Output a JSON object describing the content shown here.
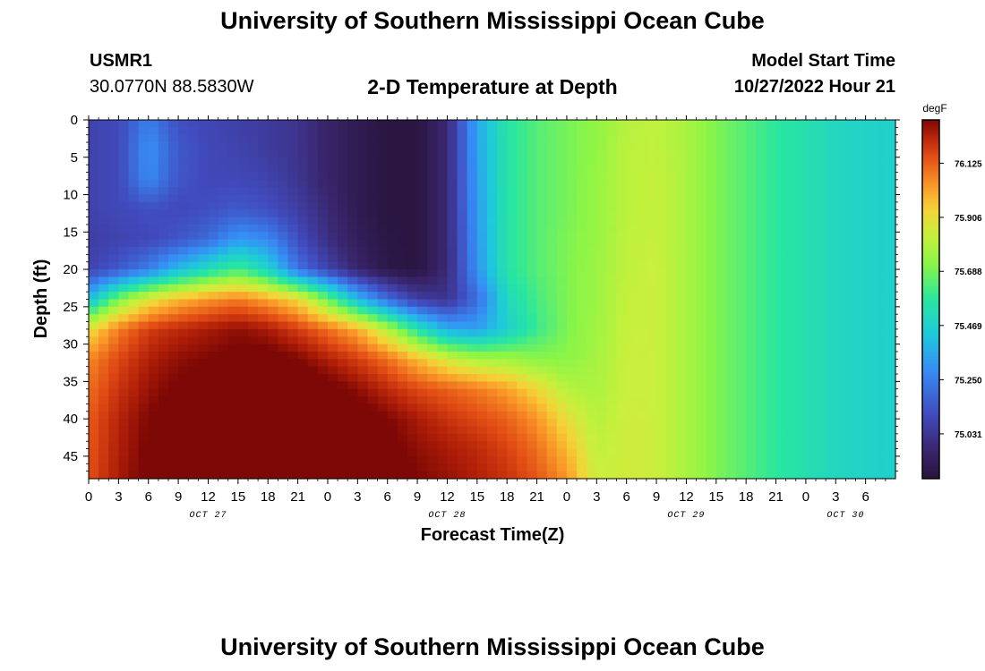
{
  "header": {
    "title": "University of Southern Mississippi Ocean Cube",
    "station_id": "USMR1",
    "station_coords": "30.0770N  88.5830W",
    "plot_title": "2-D Temperature at Depth",
    "start_label": "Model Start Time",
    "start_value": "10/27/2022 Hour 21"
  },
  "footer": {
    "title": "University of Southern Mississippi Ocean Cube"
  },
  "chart_data": {
    "type": "heatmap",
    "title": "2-D Temperature at Depth",
    "xlabel": "Forecast Time(Z)",
    "ylabel": "Depth (ft)",
    "x_hours": [
      0,
      3,
      6,
      9,
      12,
      15,
      18,
      21,
      24,
      27,
      30,
      33,
      36,
      39,
      42,
      45,
      48,
      51,
      54,
      57,
      60,
      63,
      66,
      69,
      72,
      75,
      78,
      81
    ],
    "x_tick_labels": [
      "0",
      "3",
      "6",
      "9",
      "12",
      "15",
      "18",
      "21",
      "0",
      "3",
      "6",
      "9",
      "12",
      "15",
      "18",
      "21",
      "0",
      "3",
      "6",
      "9",
      "12",
      "15",
      "18",
      "21",
      "0",
      "3",
      "6"
    ],
    "x_date_labels": [
      {
        "label": "OCT 27",
        "hour": 12
      },
      {
        "label": "OCT 28",
        "hour": 36
      },
      {
        "label": "OCT 29",
        "hour": 60
      },
      {
        "label": "OCT 30",
        "hour": 76
      }
    ],
    "xlim": [
      0,
      81
    ],
    "y_ticks": [
      0,
      5,
      10,
      15,
      20,
      25,
      30,
      35,
      40,
      45
    ],
    "ylim": [
      0,
      48
    ],
    "y_inverted": true,
    "depths": [
      0,
      4,
      8,
      12,
      16,
      20,
      24,
      28,
      32,
      36,
      40,
      44,
      48
    ],
    "temperature_grid": [
      [
        75.08,
        75.1,
        75.25,
        75.12,
        75.09,
        75.07,
        75.05,
        75.02,
        74.95,
        74.9,
        74.86,
        74.86,
        74.98,
        75.35,
        75.56,
        75.64,
        75.69,
        75.73,
        75.8,
        75.82,
        75.78,
        75.7,
        75.64,
        75.58,
        75.54,
        75.5,
        75.48,
        75.47
      ],
      [
        75.08,
        75.1,
        75.3,
        75.15,
        75.1,
        75.08,
        75.05,
        75.02,
        74.95,
        74.9,
        74.86,
        74.86,
        74.98,
        75.34,
        75.56,
        75.64,
        75.69,
        75.73,
        75.81,
        75.82,
        75.78,
        75.7,
        75.64,
        75.58,
        75.54,
        75.5,
        75.48,
        75.47
      ],
      [
        75.08,
        75.1,
        75.28,
        75.14,
        75.1,
        75.1,
        75.08,
        75.03,
        74.95,
        74.9,
        74.86,
        74.86,
        74.98,
        75.33,
        75.56,
        75.64,
        75.69,
        75.74,
        75.81,
        75.83,
        75.78,
        75.7,
        75.64,
        75.58,
        75.54,
        75.5,
        75.48,
        75.47
      ],
      [
        75.08,
        75.1,
        75.12,
        75.1,
        75.12,
        75.15,
        75.12,
        75.06,
        74.98,
        74.9,
        74.86,
        74.86,
        74.98,
        75.32,
        75.56,
        75.64,
        75.69,
        75.74,
        75.81,
        75.83,
        75.78,
        75.7,
        75.64,
        75.58,
        75.54,
        75.5,
        75.48,
        75.47
      ],
      [
        75.06,
        75.08,
        75.1,
        75.14,
        75.2,
        75.32,
        75.28,
        75.12,
        75.0,
        74.92,
        74.87,
        74.86,
        74.98,
        75.31,
        75.56,
        75.64,
        75.7,
        75.74,
        75.82,
        75.83,
        75.78,
        75.7,
        75.64,
        75.58,
        75.54,
        75.5,
        75.48,
        75.47
      ],
      [
        75.08,
        75.15,
        75.25,
        75.4,
        75.52,
        75.62,
        75.48,
        75.22,
        75.08,
        74.96,
        74.88,
        74.86,
        74.98,
        75.3,
        75.56,
        75.64,
        75.7,
        75.75,
        75.82,
        75.84,
        75.78,
        75.7,
        75.64,
        75.58,
        75.54,
        75.5,
        75.48,
        75.47
      ],
      [
        75.4,
        75.7,
        75.88,
        75.98,
        76.04,
        76.08,
        76.02,
        75.92,
        75.68,
        75.4,
        75.2,
        75.06,
        75.02,
        75.2,
        75.5,
        75.62,
        75.7,
        75.75,
        75.83,
        75.84,
        75.78,
        75.7,
        75.64,
        75.58,
        75.54,
        75.5,
        75.48,
        75.47
      ],
      [
        75.9,
        76.08,
        76.18,
        76.22,
        76.25,
        76.28,
        76.25,
        76.18,
        76.1,
        76.0,
        75.8,
        75.55,
        75.36,
        75.33,
        75.46,
        75.6,
        75.7,
        75.76,
        75.83,
        75.84,
        75.78,
        75.7,
        75.64,
        75.58,
        75.54,
        75.5,
        75.48,
        75.47
      ],
      [
        76.06,
        76.16,
        76.24,
        76.28,
        76.3,
        76.32,
        76.33,
        76.3,
        76.24,
        76.18,
        76.1,
        75.98,
        75.86,
        75.78,
        75.76,
        75.72,
        75.72,
        75.77,
        75.84,
        75.84,
        75.78,
        75.7,
        75.64,
        75.58,
        75.54,
        75.5,
        75.48,
        75.47
      ],
      [
        76.1,
        76.2,
        76.27,
        76.31,
        76.34,
        76.36,
        76.37,
        76.36,
        76.33,
        76.28,
        76.22,
        76.16,
        76.12,
        76.08,
        76.02,
        75.92,
        75.8,
        75.78,
        75.84,
        75.84,
        75.78,
        75.7,
        75.64,
        75.58,
        75.54,
        75.5,
        75.48,
        75.47
      ],
      [
        76.13,
        76.23,
        76.3,
        76.34,
        76.37,
        76.39,
        76.4,
        76.4,
        76.38,
        76.34,
        76.3,
        76.25,
        76.2,
        76.16,
        76.12,
        76.04,
        75.9,
        75.8,
        75.85,
        75.84,
        75.78,
        75.7,
        75.64,
        75.58,
        75.54,
        75.5,
        75.48,
        75.47
      ],
      [
        76.14,
        76.24,
        76.31,
        76.35,
        76.38,
        76.4,
        76.41,
        76.42,
        76.4,
        76.36,
        76.32,
        76.28,
        76.25,
        76.22,
        76.17,
        76.1,
        75.98,
        75.82,
        75.85,
        75.84,
        75.78,
        75.7,
        75.64,
        75.58,
        75.54,
        75.5,
        75.48,
        75.47
      ],
      [
        76.15,
        76.25,
        76.32,
        76.36,
        76.39,
        76.41,
        76.42,
        76.43,
        76.41,
        76.38,
        76.34,
        76.3,
        76.27,
        76.24,
        76.2,
        76.14,
        76.04,
        75.84,
        75.85,
        75.84,
        75.78,
        75.7,
        75.64,
        75.58,
        75.54,
        75.5,
        75.48,
        75.47
      ]
    ],
    "colorbar": {
      "unit": "degF",
      "tick_labels": [
        "76.125",
        "75.906",
        "75.688",
        "75.469",
        "75.250",
        "75.031"
      ],
      "tick_values": [
        76.125,
        75.906,
        75.688,
        75.469,
        75.25,
        75.031
      ],
      "range": [
        74.85,
        76.3
      ],
      "colormap": "turbo"
    }
  }
}
